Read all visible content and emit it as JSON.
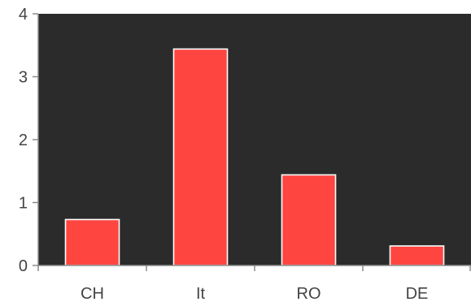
{
  "chart_data": {
    "type": "bar",
    "categories": [
      "CH",
      "It",
      "RO",
      "DE"
    ],
    "values": [
      0.73,
      3.44,
      1.44,
      0.31
    ],
    "title": "",
    "xlabel": "",
    "ylabel": "",
    "ylim": [
      0,
      4
    ],
    "yticks": [
      0,
      1,
      2,
      3,
      4
    ],
    "grid": false,
    "legend": "none",
    "colors": {
      "plot_background": "#2b2b2b",
      "bar_fill": "#ff4540",
      "bar_stroke": "#ffffff",
      "axis": "#8a8a8a",
      "tick_text": "#444444"
    }
  }
}
